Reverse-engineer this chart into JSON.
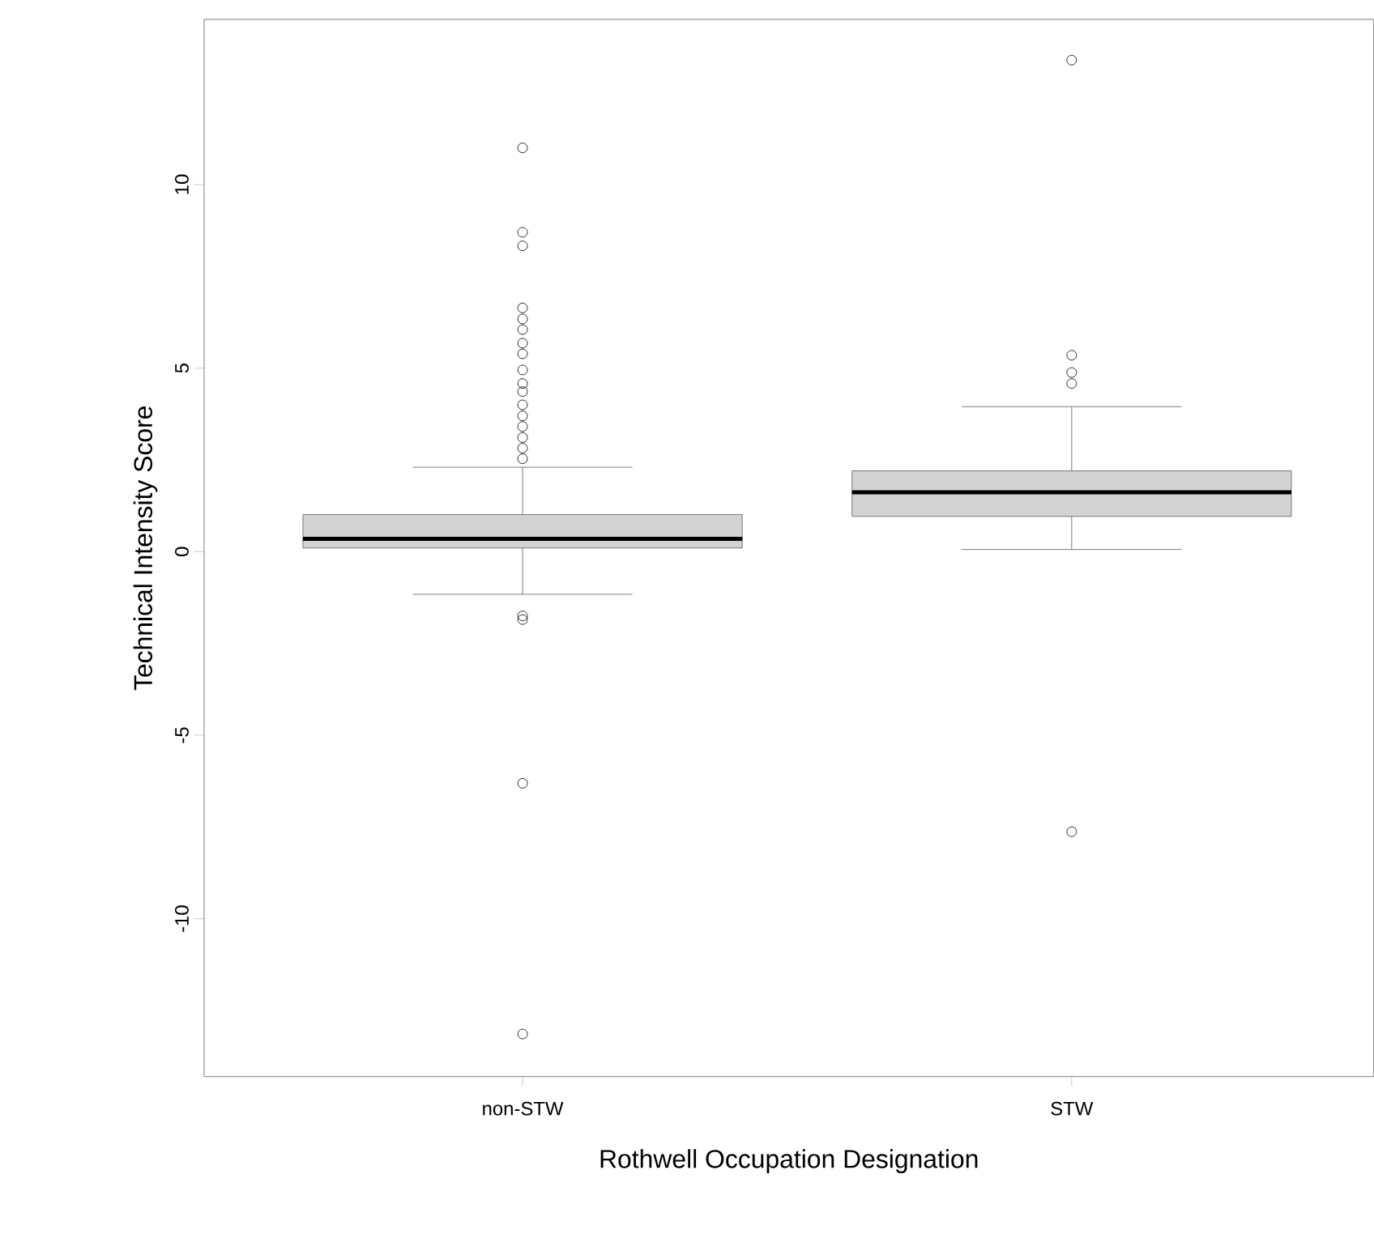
{
  "chart_data": {
    "type": "box",
    "xlabel": "Rothwell Occupation Designation",
    "ylabel": "Technical Intensity Score",
    "categories": [
      "non-STW",
      "STW"
    ],
    "boxes": [
      {
        "low": -1.16,
        "q1": 0.1,
        "median": 0.35,
        "q3": 1.01,
        "high": 2.3,
        "outliers": [
          11.0,
          8.7,
          8.33,
          6.64,
          6.34,
          6.05,
          5.68,
          5.39,
          4.95,
          4.58,
          4.36,
          4.0,
          3.7,
          3.41,
          3.11,
          2.82,
          2.53,
          -1.75,
          -1.85,
          -6.31,
          -13.14
        ]
      },
      {
        "low": 0.06,
        "q1": 0.96,
        "median": 1.62,
        "q3": 2.2,
        "high": 3.95,
        "outliers": [
          13.39,
          5.35,
          4.88,
          4.58,
          -7.63
        ]
      }
    ],
    "colors": [
      "#d3d3d3",
      "#d3d3d3"
    ],
    "marker": "circle",
    "ylim": [
      -14.3,
      14.5
    ],
    "yticks": [
      -10,
      -5,
      0,
      5,
      10
    ]
  }
}
